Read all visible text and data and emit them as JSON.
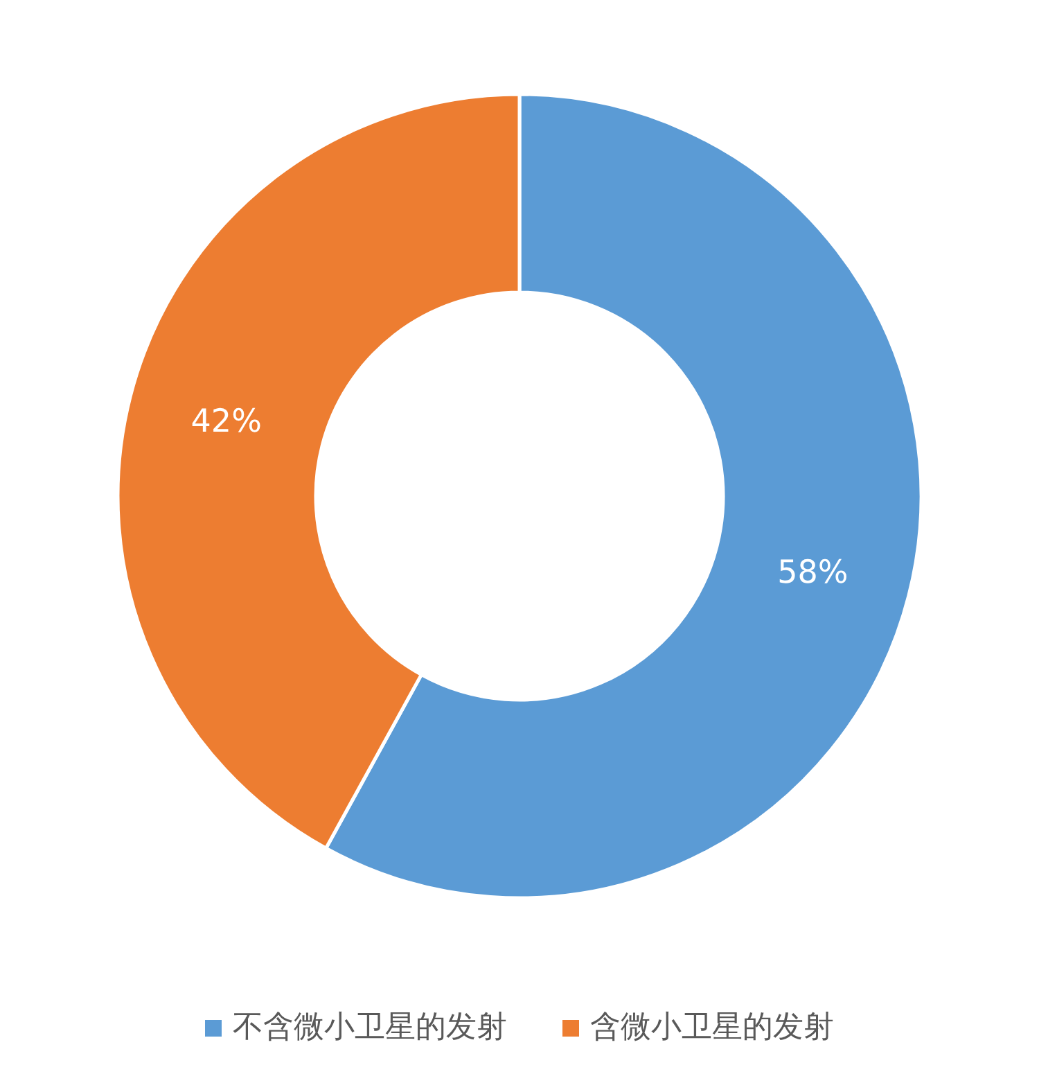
{
  "chart_data": {
    "type": "donut",
    "categories": [
      "不含微小卫星的发射",
      "含微小卫星的发射"
    ],
    "values": [
      58,
      42
    ],
    "colors": [
      "#5b9bd5",
      "#ed7d31"
    ],
    "value_labels": [
      "58%",
      "42%"
    ],
    "legend": "bottom"
  }
}
